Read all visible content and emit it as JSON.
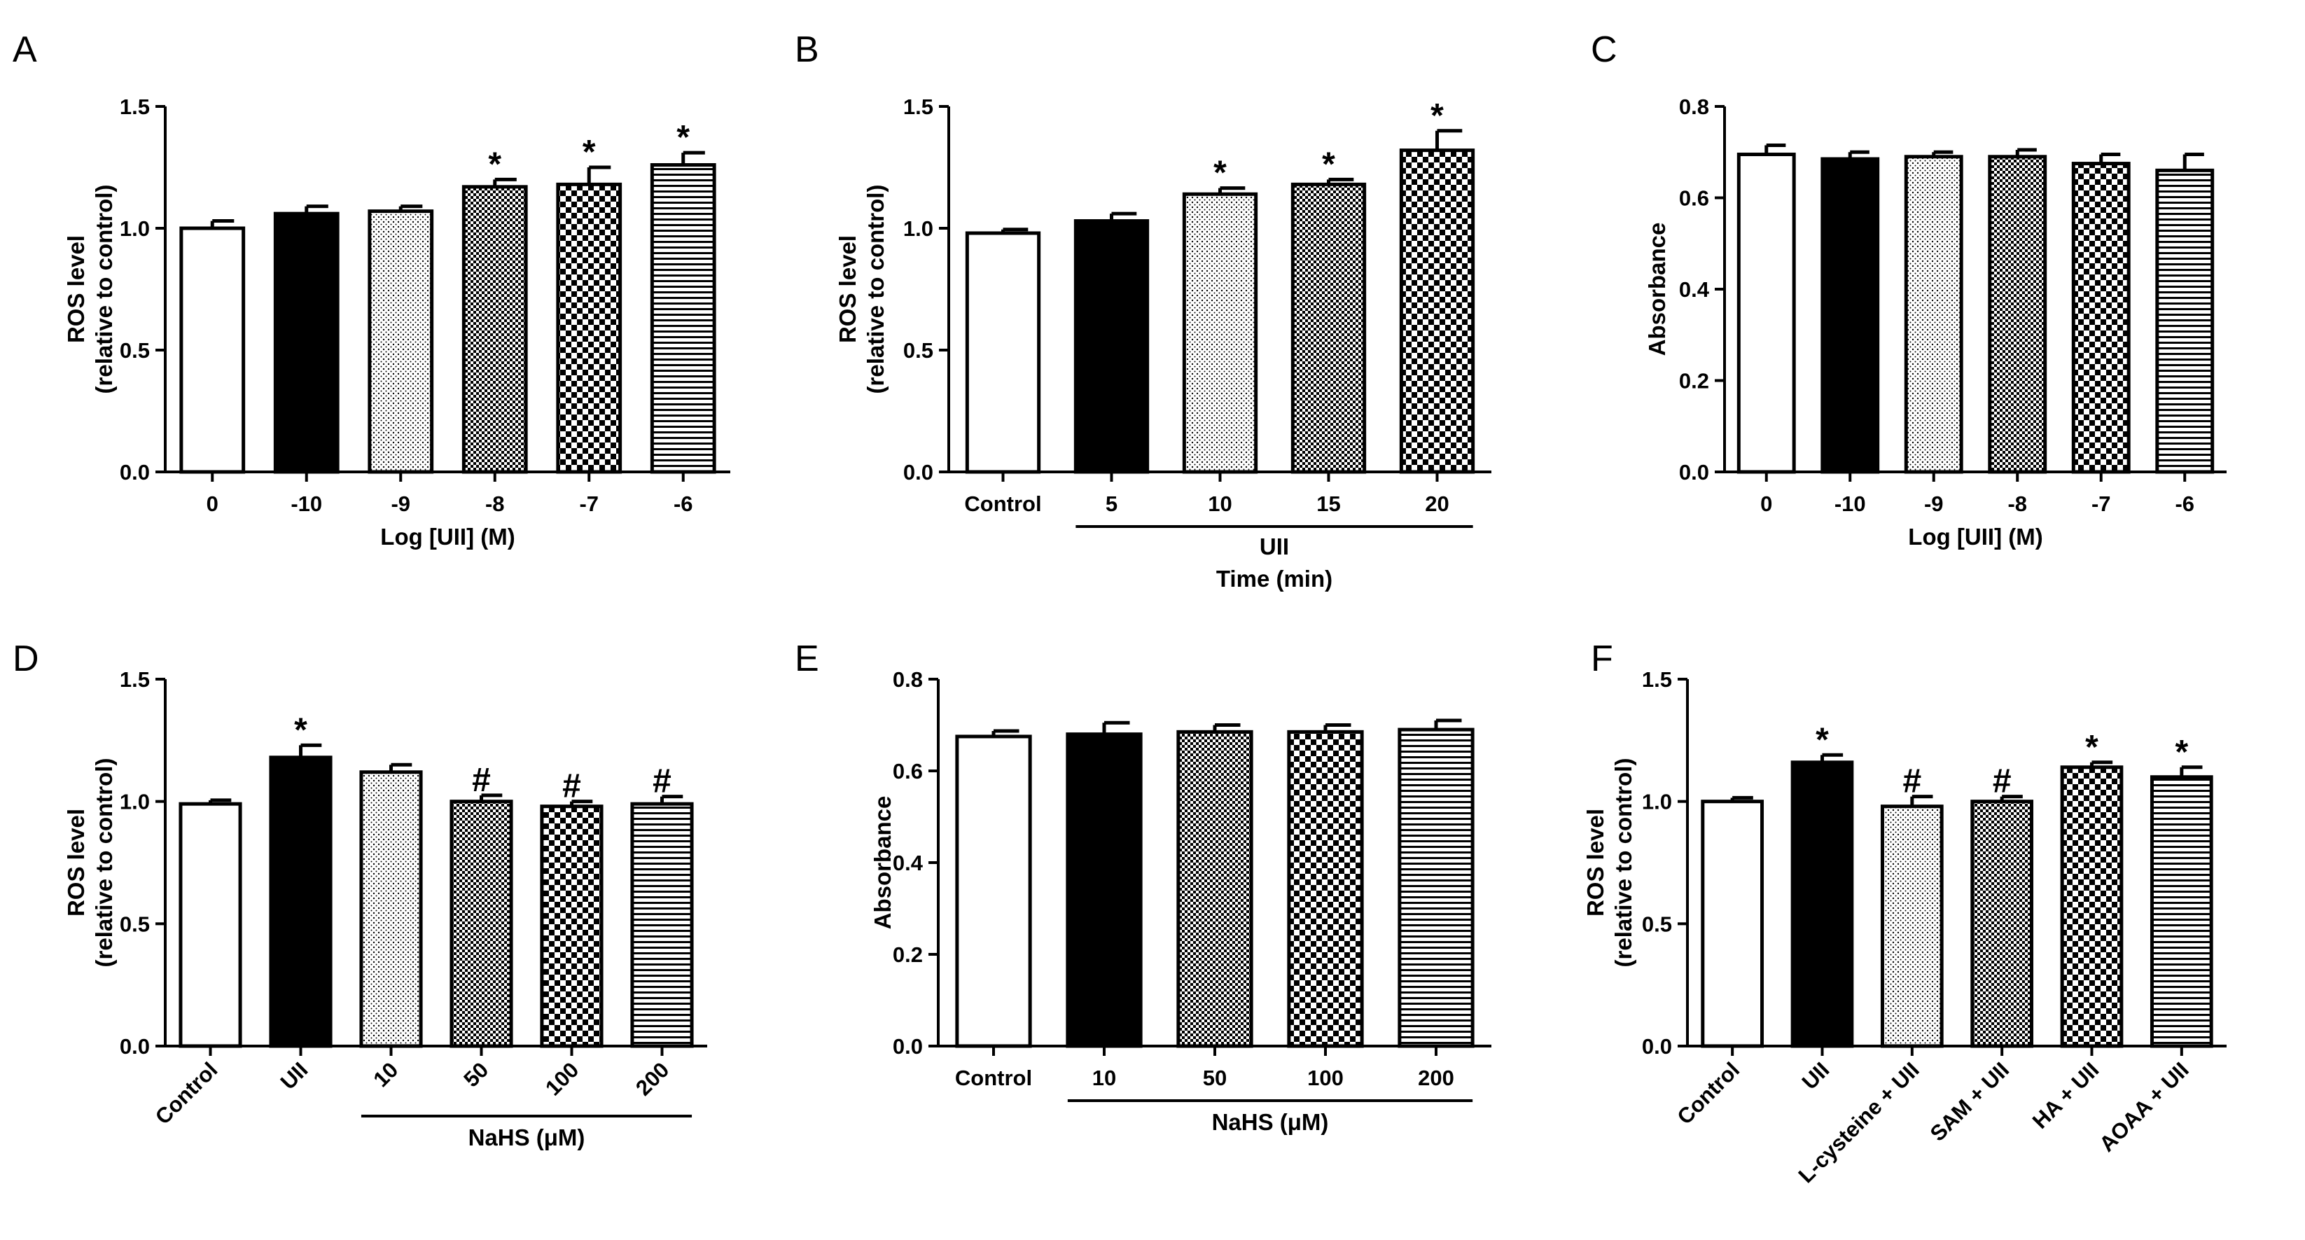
{
  "chart_data": [
    {
      "panel": "A",
      "type": "bar",
      "ylabel": [
        "ROS level",
        "(relative to control)"
      ],
      "xlabel": "Log [UII] (M)",
      "ylim": [
        0,
        1.5
      ],
      "yticks": [
        "0.0",
        "0.5",
        "1.0",
        "1.5"
      ],
      "categories": [
        "0",
        "-10",
        "-9",
        "-8",
        "-7",
        "-6"
      ],
      "values": [
        1.0,
        1.06,
        1.07,
        1.17,
        1.18,
        1.26
      ],
      "errors": [
        0.03,
        0.03,
        0.02,
        0.03,
        0.07,
        0.05
      ],
      "patterns": [
        "white",
        "black",
        "dots",
        "dense-check",
        "check",
        "hlines"
      ],
      "annotations": [
        "",
        "",
        "",
        "*",
        "*",
        "*"
      ]
    },
    {
      "panel": "B",
      "type": "bar",
      "ylabel": [
        "ROS level",
        "(relative to control)"
      ],
      "xlabel": "Time (min)",
      "group_label": "UII",
      "group_range": [
        1,
        4
      ],
      "ylim": [
        0,
        1.5
      ],
      "yticks": [
        "0.0",
        "0.5",
        "1.0",
        "1.5"
      ],
      "categories": [
        "Control",
        "5",
        "10",
        "15",
        "20"
      ],
      "values": [
        0.98,
        1.03,
        1.14,
        1.18,
        1.32
      ],
      "errors": [
        0.015,
        0.03,
        0.025,
        0.02,
        0.08
      ],
      "patterns": [
        "white",
        "black",
        "dots",
        "dense-check",
        "check"
      ],
      "annotations": [
        "",
        "",
        "*",
        "*",
        "*"
      ]
    },
    {
      "panel": "C",
      "type": "bar",
      "ylabel": [
        "Absorbance"
      ],
      "xlabel": "Log [UII] (M)",
      "ylim": [
        0,
        0.8
      ],
      "yticks": [
        "0.0",
        "0.2",
        "0.4",
        "0.6",
        "0.8"
      ],
      "categories": [
        "0",
        "-10",
        "-9",
        "-8",
        "-7",
        "-6"
      ],
      "values": [
        0.695,
        0.685,
        0.69,
        0.69,
        0.675,
        0.66
      ],
      "errors": [
        0.02,
        0.015,
        0.01,
        0.015,
        0.02,
        0.035
      ],
      "patterns": [
        "white",
        "black",
        "dots",
        "dense-check",
        "check",
        "hlines"
      ],
      "annotations": [
        "",
        "",
        "",
        "",
        "",
        ""
      ]
    },
    {
      "panel": "D",
      "type": "bar",
      "ylabel": [
        "ROS level",
        "(relative to control)"
      ],
      "xlabel": "NaHS (μM)",
      "group_range": [
        2,
        5
      ],
      "ylim": [
        0,
        1.5
      ],
      "yticks": [
        "0.0",
        "0.5",
        "1.0",
        "1.5"
      ],
      "categories": [
        "Control",
        "UII",
        "10",
        "50",
        "100",
        "200"
      ],
      "values": [
        0.99,
        1.18,
        1.12,
        1.0,
        0.98,
        0.99
      ],
      "errors": [
        0.015,
        0.05,
        0.03,
        0.025,
        0.02,
        0.03
      ],
      "patterns": [
        "white",
        "black",
        "dots",
        "dense-check",
        "check",
        "hlines"
      ],
      "annotations": [
        "",
        "*",
        "",
        "#",
        "#",
        "#"
      ],
      "rotated_ticks": true
    },
    {
      "panel": "E",
      "type": "bar",
      "ylabel": [
        "Absorbance"
      ],
      "xlabel": "NaHS (μM)",
      "group_range": [
        1,
        4
      ],
      "ylim": [
        0,
        0.8
      ],
      "yticks": [
        "0.0",
        "0.2",
        "0.4",
        "0.6",
        "0.8"
      ],
      "categories": [
        "Control",
        "10",
        "50",
        "100",
        "200"
      ],
      "values": [
        0.675,
        0.68,
        0.685,
        0.685,
        0.69
      ],
      "errors": [
        0.012,
        0.025,
        0.015,
        0.015,
        0.02
      ],
      "patterns": [
        "white",
        "black",
        "dense-check",
        "check",
        "hlines"
      ],
      "annotations": [
        "",
        "",
        "",
        "",
        ""
      ]
    },
    {
      "panel": "F",
      "type": "bar",
      "ylabel": [
        "ROS level",
        "(relative to control)"
      ],
      "xlabel": "",
      "ylim": [
        0,
        1.5
      ],
      "yticks": [
        "0.0",
        "0.5",
        "1.0",
        "1.5"
      ],
      "categories": [
        "Control",
        "UII",
        "L-cysteine + UII",
        "SAM + UII",
        "HA + UII",
        "AOAA + UII"
      ],
      "values": [
        1.0,
        1.16,
        0.98,
        1.0,
        1.14,
        1.1
      ],
      "errors": [
        0.015,
        0.03,
        0.04,
        0.02,
        0.02,
        0.04
      ],
      "patterns": [
        "white",
        "black",
        "dots",
        "dense-check",
        "check",
        "hlines"
      ],
      "annotations": [
        "",
        "*",
        "#",
        "#",
        "*",
        "*"
      ],
      "rotated_ticks": true
    }
  ]
}
